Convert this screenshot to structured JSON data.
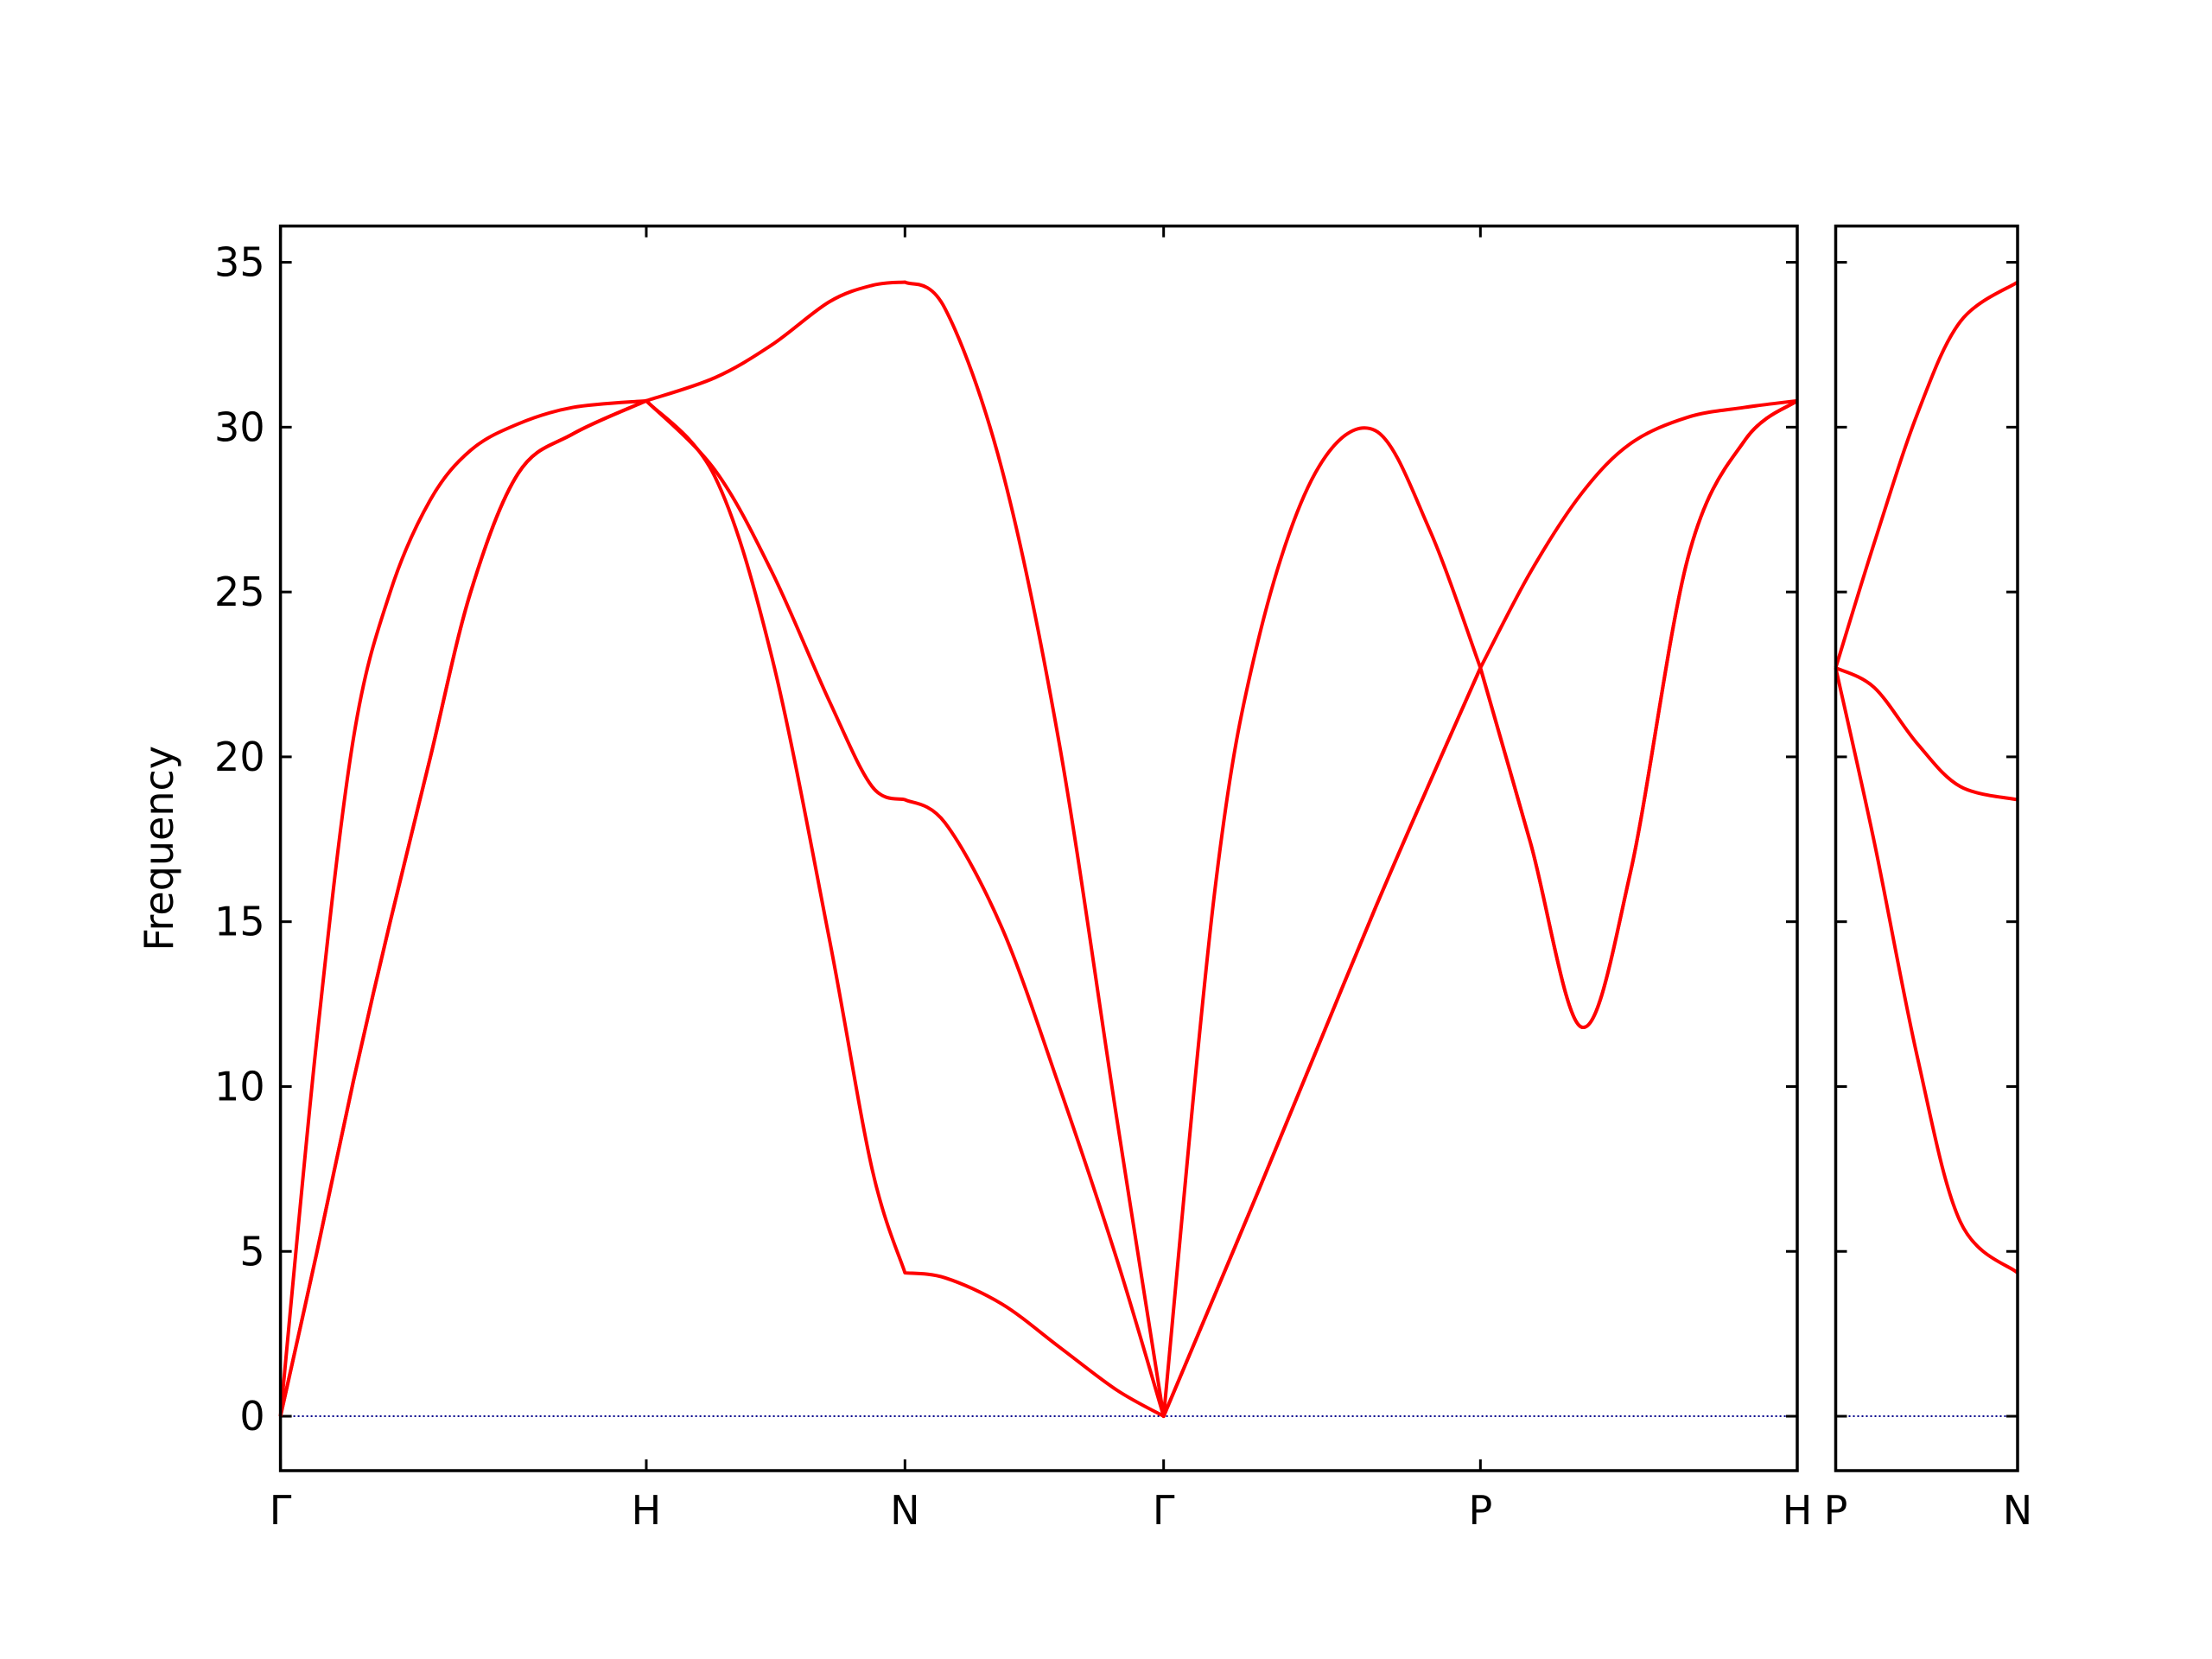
{
  "chart_data": [
    {
      "type": "line",
      "ylabel": "Frequency",
      "x": [
        0,
        0.1,
        0.2,
        0.3,
        0.41,
        0.52,
        0.65,
        0.8,
        1,
        1.1875,
        1.3438,
        1.5,
        1.6172,
        1.7071,
        1.8165,
        1.9727,
        2.129,
        2.2852,
        2.4142,
        2.5548,
        2.672,
        2.8283,
        2.9923,
        3.1408,
        3.2802,
        3.4169,
        3.5575,
        3.6904,
        3.8466,
        4.0029,
        4.1463
      ],
      "xlim": [
        0,
        4.1463
      ],
      "xticks": [
        {
          "value": 0,
          "label": "Γ"
        },
        {
          "value": 1,
          "label": "H"
        },
        {
          "value": 1.7071,
          "label": "N"
        },
        {
          "value": 2.4142,
          "label": "Γ"
        },
        {
          "value": 3.2802,
          "label": "P"
        },
        {
          "value": 4.1463,
          "label": "H"
        }
      ],
      "ylim": [
        -1.65,
        36.1
      ],
      "yticks": [
        0,
        5,
        10,
        15,
        20,
        25,
        30,
        35
      ],
      "ytick_labels": true,
      "zero_line": true,
      "zero_line_color": "#00008b",
      "series": [
        {
          "color": "#ff0000",
          "values": [
            0,
            5,
            10.2,
            15,
            20,
            25,
            28.6,
            29.8,
            30.8,
            28.5,
            23,
            14.5,
            7.5,
            4.35,
            4.2,
            3.4,
            2.1,
            0.8,
            0,
            3.7,
            6.8,
            11,
            15.4,
            19.2,
            22.7,
            17.4,
            11.8,
            16.5,
            26,
            29.6,
            30.8
          ]
        },
        {
          "color": "#ff0000",
          "values": [
            0,
            5,
            10.2,
            15,
            20,
            25,
            28.6,
            29.8,
            30.8,
            28.7,
            25.6,
            21.7,
            19.1,
            18.7,
            18,
            14.8,
            10,
            4.8,
            0,
            3.7,
            6.8,
            11,
            15.4,
            19.2,
            22.7,
            17.4,
            11.8,
            16.5,
            26,
            29.6,
            30.8
          ]
        },
        {
          "color": "#ff0000",
          "values": [
            0,
            11.5,
            20.6,
            25,
            27.8,
            29.3,
            30.1,
            30.6,
            30.8,
            31.5,
            32.5,
            33.8,
            34.3,
            34.4,
            33.6,
            28.7,
            20.4,
            9.1,
            0,
            16,
            23.5,
            28.6,
            29.9,
            26.9,
            22.7,
            25.6,
            28,
            29.5,
            30.3,
            30.6,
            30.8
          ]
        }
      ]
    },
    {
      "type": "line",
      "x": [
        0,
        0.1063,
        0.2244,
        0.3425,
        0.5
      ],
      "xlim": [
        0,
        0.5
      ],
      "xticks": [
        {
          "value": 0,
          "label": "P"
        },
        {
          "value": 0.5,
          "label": "N"
        }
      ],
      "ylim": [
        -1.65,
        36.1
      ],
      "yticks": [
        0,
        5,
        10,
        15,
        20,
        25,
        30,
        35
      ],
      "ytick_labels": false,
      "zero_line": true,
      "zero_line_color": "#00008b",
      "series": [
        {
          "color": "#ff0000",
          "values": [
            22.7,
            26.5,
            30.4,
            33.2,
            34.4
          ]
        },
        {
          "color": "#ff0000",
          "values": [
            22.7,
            22.1,
            20.4,
            19.1,
            18.7
          ]
        },
        {
          "color": "#ff0000",
          "values": [
            22.7,
            17.4,
            10.9,
            5.9,
            4.35
          ]
        }
      ]
    }
  ]
}
